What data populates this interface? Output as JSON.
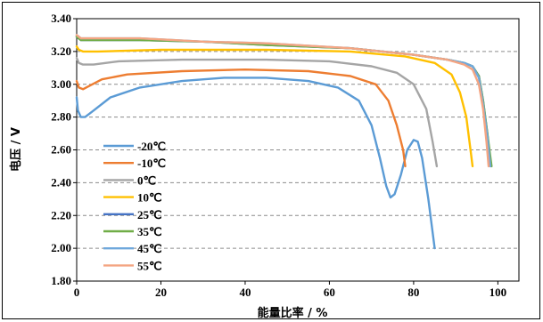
{
  "chart_data": {
    "type": "line",
    "xlabel": "能量比率 / %",
    "ylabel": "电压 / V",
    "xlim": [
      0,
      105
    ],
    "ylim": [
      1.8,
      3.4
    ],
    "xticks": [
      "0",
      "20",
      "40",
      "60",
      "80",
      "100"
    ],
    "yticks": [
      "1.80",
      "2.00",
      "2.20",
      "2.40",
      "2.60",
      "2.80",
      "3.00",
      "3.20",
      "3.40"
    ],
    "grid": "horizontal-dashed",
    "legend_position": "left-center",
    "series": [
      {
        "name": "-20℃",
        "color": "#5B9BD5",
        "points": [
          [
            0,
            2.92
          ],
          [
            0.3,
            2.84
          ],
          [
            1,
            2.8
          ],
          [
            2,
            2.8
          ],
          [
            4,
            2.84
          ],
          [
            8,
            2.92
          ],
          [
            15,
            2.98
          ],
          [
            25,
            3.02
          ],
          [
            35,
            3.04
          ],
          [
            45,
            3.04
          ],
          [
            55,
            3.02
          ],
          [
            62,
            2.98
          ],
          [
            67,
            2.9
          ],
          [
            70,
            2.75
          ],
          [
            72,
            2.55
          ],
          [
            73.5,
            2.38
          ],
          [
            74.5,
            2.31
          ],
          [
            75.5,
            2.33
          ],
          [
            77,
            2.45
          ],
          [
            78.5,
            2.6
          ],
          [
            80,
            2.66
          ],
          [
            81,
            2.65
          ],
          [
            82,
            2.55
          ],
          [
            83.5,
            2.3
          ],
          [
            85,
            2.0
          ]
        ]
      },
      {
        "name": "-10℃",
        "color": "#ED7D31",
        "points": [
          [
            0,
            3.02
          ],
          [
            0.5,
            2.98
          ],
          [
            1.5,
            2.97
          ],
          [
            3,
            2.99
          ],
          [
            6,
            3.03
          ],
          [
            12,
            3.06
          ],
          [
            25,
            3.08
          ],
          [
            40,
            3.09
          ],
          [
            55,
            3.08
          ],
          [
            65,
            3.05
          ],
          [
            71,
            3.0
          ],
          [
            74,
            2.9
          ],
          [
            76,
            2.75
          ],
          [
            77.5,
            2.6
          ],
          [
            78,
            2.5
          ]
        ]
      },
      {
        "name": "0℃",
        "color": "#A5A5A5",
        "points": [
          [
            0,
            3.16
          ],
          [
            0.5,
            3.13
          ],
          [
            1.5,
            3.12
          ],
          [
            4,
            3.12
          ],
          [
            10,
            3.14
          ],
          [
            25,
            3.15
          ],
          [
            45,
            3.15
          ],
          [
            60,
            3.14
          ],
          [
            70,
            3.11
          ],
          [
            76,
            3.07
          ],
          [
            80,
            3.0
          ],
          [
            83,
            2.85
          ],
          [
            84.5,
            2.65
          ],
          [
            85.5,
            2.5
          ]
        ]
      },
      {
        "name": "10℃",
        "color": "#FFC000",
        "points": [
          [
            0,
            3.23
          ],
          [
            0.5,
            3.21
          ],
          [
            1.5,
            3.2
          ],
          [
            5,
            3.2
          ],
          [
            20,
            3.21
          ],
          [
            45,
            3.21
          ],
          [
            65,
            3.2
          ],
          [
            78,
            3.17
          ],
          [
            85,
            3.13
          ],
          [
            89,
            3.06
          ],
          [
            91,
            2.95
          ],
          [
            92.5,
            2.8
          ],
          [
            93.5,
            2.6
          ],
          [
            94,
            2.5
          ]
        ]
      },
      {
        "name": "25℃",
        "color": "#4472C4",
        "points": [
          [
            0,
            3.29
          ],
          [
            1,
            3.27
          ],
          [
            3,
            3.27
          ],
          [
            15,
            3.27
          ],
          [
            30,
            3.26
          ],
          [
            45,
            3.24
          ],
          [
            65,
            3.22
          ],
          [
            80,
            3.18
          ],
          [
            88,
            3.15
          ],
          [
            92,
            3.13
          ],
          [
            94,
            3.11
          ],
          [
            95.5,
            3.05
          ],
          [
            96.5,
            2.9
          ],
          [
            97.5,
            2.7
          ],
          [
            98.3,
            2.5
          ]
        ]
      },
      {
        "name": "35℃",
        "color": "#70AD47",
        "points": [
          [
            0,
            3.29
          ],
          [
            1,
            3.27
          ],
          [
            3,
            3.27
          ],
          [
            15,
            3.27
          ],
          [
            30,
            3.26
          ],
          [
            45,
            3.24
          ],
          [
            65,
            3.22
          ],
          [
            80,
            3.18
          ],
          [
            88,
            3.15
          ],
          [
            92,
            3.13
          ],
          [
            94,
            3.11
          ],
          [
            95.5,
            3.05
          ],
          [
            96.5,
            2.9
          ],
          [
            97.5,
            2.7
          ],
          [
            98.5,
            2.5
          ]
        ]
      },
      {
        "name": "45℃",
        "color": "#6FA8DC",
        "points": [
          [
            0,
            3.3
          ],
          [
            1,
            3.28
          ],
          [
            3,
            3.28
          ],
          [
            15,
            3.28
          ],
          [
            30,
            3.26
          ],
          [
            45,
            3.25
          ],
          [
            65,
            3.22
          ],
          [
            80,
            3.18
          ],
          [
            88,
            3.15
          ],
          [
            92,
            3.13
          ],
          [
            94,
            3.11
          ],
          [
            95.5,
            3.04
          ],
          [
            96.5,
            2.88
          ],
          [
            97.5,
            2.68
          ],
          [
            98.2,
            2.5
          ]
        ]
      },
      {
        "name": "55℃",
        "color": "#F4A582",
        "points": [
          [
            0,
            3.3
          ],
          [
            1,
            3.28
          ],
          [
            3,
            3.28
          ],
          [
            15,
            3.28
          ],
          [
            30,
            3.26
          ],
          [
            45,
            3.25
          ],
          [
            65,
            3.22
          ],
          [
            80,
            3.18
          ],
          [
            88,
            3.15
          ],
          [
            92,
            3.12
          ],
          [
            94,
            3.09
          ],
          [
            95.5,
            3.0
          ],
          [
            96.5,
            2.85
          ],
          [
            97.3,
            2.65
          ],
          [
            97.8,
            2.5
          ]
        ]
      }
    ]
  }
}
